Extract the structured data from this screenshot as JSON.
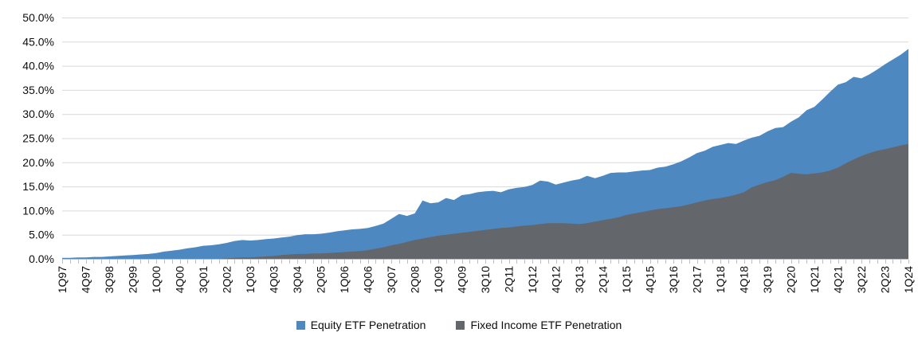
{
  "colors": {
    "equity": "#4D89C0",
    "fixed_income": "#63666A",
    "gridline": "#D9D9D9",
    "axis": "#BFBFBF",
    "label": "#0D0D0D",
    "background": "#FFFFFF"
  },
  "legend": [
    {
      "label": "Equity ETF Penetration",
      "color": "#4D89C0"
    },
    {
      "label": "Fixed Income ETF Penetration",
      "color": "#63666A"
    }
  ],
  "chart_data": {
    "type": "area",
    "title": "",
    "xlabel": "",
    "ylabel": "",
    "grid": true,
    "legend_position": "bottom",
    "overlapping_series": true,
    "y_axis": {
      "min": 0,
      "max": 50,
      "step": 5,
      "tick_labels": [
        "0.0%",
        "5.0%",
        "10.0%",
        "15.0%",
        "20.0%",
        "25.0%",
        "30.0%",
        "35.0%",
        "40.0%",
        "45.0%",
        "50.0%"
      ]
    },
    "x_axis": {
      "start": "1Q97",
      "end": "1Q24",
      "points": 109,
      "label_every_n_points": 3,
      "tick_labels": [
        "1Q97",
        "4Q97",
        "3Q98",
        "2Q99",
        "1Q00",
        "4Q00",
        "3Q01",
        "2Q02",
        "1Q03",
        "4Q03",
        "3Q04",
        "2Q05",
        "1Q06",
        "4Q06",
        "3Q07",
        "2Q08",
        "1Q09",
        "4Q09",
        "3Q10",
        "2Q11",
        "1Q12",
        "4Q12",
        "3Q13",
        "2Q14",
        "1Q15",
        "4Q15",
        "3Q16",
        "2Q17",
        "1Q18",
        "4Q18",
        "3Q19",
        "2Q20",
        "1Q21",
        "4Q21",
        "3Q22",
        "2Q23",
        "1Q24"
      ]
    },
    "series": [
      {
        "name": "Equity ETF Penetration",
        "color": "#4D89C0",
        "unit": "%",
        "values": [
          0.2,
          0.2,
          0.3,
          0.3,
          0.4,
          0.4,
          0.5,
          0.6,
          0.7,
          0.8,
          0.9,
          1.0,
          1.2,
          1.5,
          1.7,
          1.9,
          2.2,
          2.4,
          2.7,
          2.8,
          3.0,
          3.3,
          3.7,
          3.9,
          3.8,
          3.9,
          4.1,
          4.2,
          4.4,
          4.6,
          4.9,
          5.1,
          5.1,
          5.2,
          5.4,
          5.7,
          5.9,
          6.1,
          6.2,
          6.4,
          6.8,
          7.3,
          8.3,
          9.3,
          8.9,
          9.4,
          12.1,
          11.5,
          11.7,
          12.6,
          12.2,
          13.2,
          13.4,
          13.8,
          14.0,
          14.1,
          13.8,
          14.4,
          14.7,
          14.9,
          15.3,
          16.2,
          16.0,
          15.4,
          15.8,
          16.2,
          16.5,
          17.2,
          16.7,
          17.2,
          17.8,
          17.9,
          17.9,
          18.1,
          18.3,
          18.4,
          18.9,
          19.1,
          19.6,
          20.2,
          21.0,
          21.9,
          22.4,
          23.2,
          23.6,
          24.0,
          23.8,
          24.5,
          25.1,
          25.5,
          26.4,
          27.1,
          27.3,
          28.4,
          29.3,
          30.8,
          31.5,
          33.0,
          34.6,
          36.1,
          36.6,
          37.7,
          37.4,
          38.2,
          39.2,
          40.3,
          41.3,
          42.3,
          43.5
        ]
      },
      {
        "name": "Fixed Income ETF Penetration",
        "color": "#63666A",
        "unit": "%",
        "values": [
          0,
          0,
          0,
          0,
          0,
          0,
          0,
          0,
          0,
          0,
          0,
          0,
          0,
          0,
          0,
          0,
          0,
          0,
          0,
          0,
          0.0,
          0.1,
          0.2,
          0.3,
          0.3,
          0.4,
          0.5,
          0.6,
          0.8,
          0.9,
          1.0,
          1.0,
          1.1,
          1.1,
          1.2,
          1.3,
          1.4,
          1.5,
          1.6,
          1.8,
          2.1,
          2.4,
          2.8,
          3.1,
          3.5,
          3.9,
          4.2,
          4.5,
          4.8,
          5.0,
          5.2,
          5.4,
          5.6,
          5.8,
          6.0,
          6.2,
          6.4,
          6.5,
          6.7,
          6.9,
          7.0,
          7.2,
          7.4,
          7.4,
          7.4,
          7.3,
          7.2,
          7.4,
          7.7,
          8.0,
          8.3,
          8.6,
          9.1,
          9.4,
          9.7,
          10.0,
          10.3,
          10.5,
          10.7,
          10.9,
          11.3,
          11.7,
          12.1,
          12.4,
          12.6,
          12.9,
          13.3,
          13.8,
          14.8,
          15.4,
          15.9,
          16.3,
          17.0,
          17.8,
          17.6,
          17.5,
          17.7,
          17.9,
          18.3,
          18.9,
          19.8,
          20.6,
          21.3,
          21.9,
          22.4,
          22.7,
          23.1,
          23.5,
          23.8
        ]
      }
    ]
  }
}
